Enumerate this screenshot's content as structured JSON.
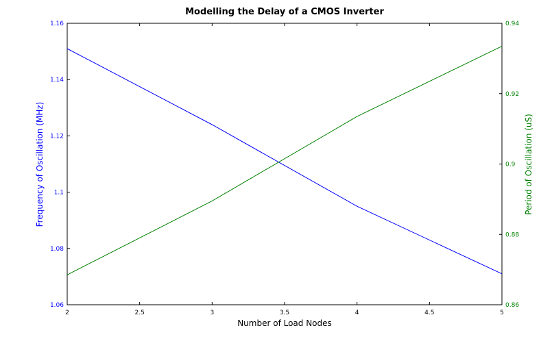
{
  "chart_data": {
    "type": "line",
    "title": "Modelling the Delay of a CMOS Inverter",
    "xlabel": "Number of Load Nodes",
    "ylabel_left": "Frequency of Oscillation (MHz)",
    "ylabel_right": "Period of Oscillation (uS)",
    "xlim": [
      2,
      5
    ],
    "ylim_left": [
      1.06,
      1.16
    ],
    "ylim_right": [
      0.86,
      0.94
    ],
    "x_ticks": [
      "2",
      "2.5",
      "3",
      "3.5",
      "4",
      "4.5",
      "5"
    ],
    "y_ticks_left": [
      "1.06",
      "1.08",
      "1.1",
      "1.12",
      "1.14",
      "1.16"
    ],
    "y_ticks_right": [
      "0.86",
      "0.88",
      "0.9",
      "0.92",
      "0.94"
    ],
    "grid": false,
    "series": [
      {
        "axis": "left",
        "color": "#0000ff",
        "x": [
          2,
          3,
          4,
          5
        ],
        "y": [
          1.151,
          1.124,
          1.095,
          1.071
        ]
      },
      {
        "axis": "right",
        "color": "#008000",
        "x": [
          2,
          3,
          4,
          5
        ],
        "y": [
          0.8685,
          0.8895,
          0.9135,
          0.9335
        ]
      }
    ],
    "colors": {
      "left_axis": "#0000ff",
      "right_axis": "#008000",
      "frame": "#000000"
    }
  }
}
